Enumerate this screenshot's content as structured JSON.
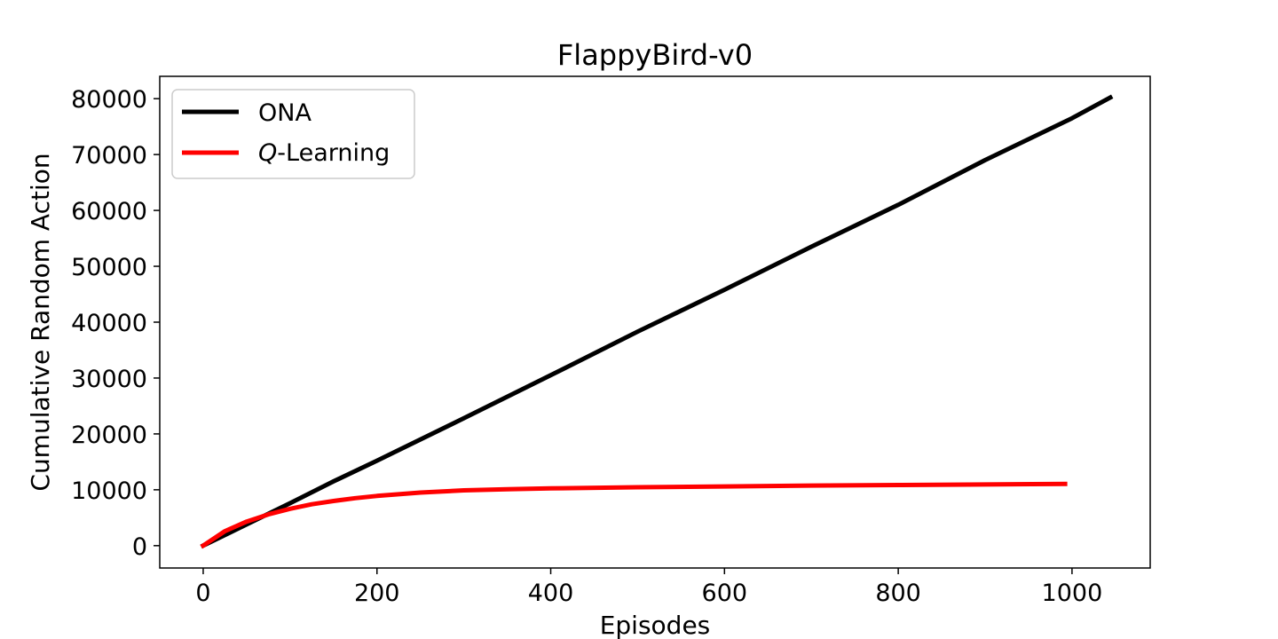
{
  "chart_data": {
    "type": "line",
    "title": "FlappyBird-v0",
    "xlabel": "Episodes",
    "ylabel": "Cumulative Random Action",
    "xlim": [
      -50,
      1090
    ],
    "ylim": [
      -4000,
      84000
    ],
    "xticks": [
      0,
      200,
      400,
      600,
      800,
      1000
    ],
    "yticks": [
      0,
      10000,
      20000,
      30000,
      40000,
      50000,
      60000,
      70000,
      80000
    ],
    "grid": false,
    "legend_position": "top-left",
    "series": [
      {
        "name": "ONA",
        "name_prefix": "",
        "name_suffix": "",
        "color": "#000000",
        "x": [
          0,
          50,
          100,
          150,
          200,
          300,
          400,
          500,
          600,
          700,
          800,
          900,
          1000,
          1044
        ],
        "y": [
          0,
          3800,
          7600,
          11500,
          15200,
          22800,
          30500,
          38300,
          45800,
          53500,
          61000,
          69000,
          76500,
          80200
        ]
      },
      {
        "name": "Q-Learning",
        "name_prefix": "Q",
        "name_suffix": "-Learning",
        "color": "#ff0000",
        "x": [
          0,
          25,
          50,
          75,
          100,
          125,
          150,
          175,
          200,
          250,
          300,
          350,
          400,
          500,
          600,
          700,
          800,
          900,
          992
        ],
        "y": [
          0,
          2600,
          4300,
          5600,
          6600,
          7400,
          8000,
          8500,
          8900,
          9500,
          9900,
          10100,
          10250,
          10450,
          10600,
          10750,
          10850,
          10950,
          11050
        ]
      }
    ]
  }
}
